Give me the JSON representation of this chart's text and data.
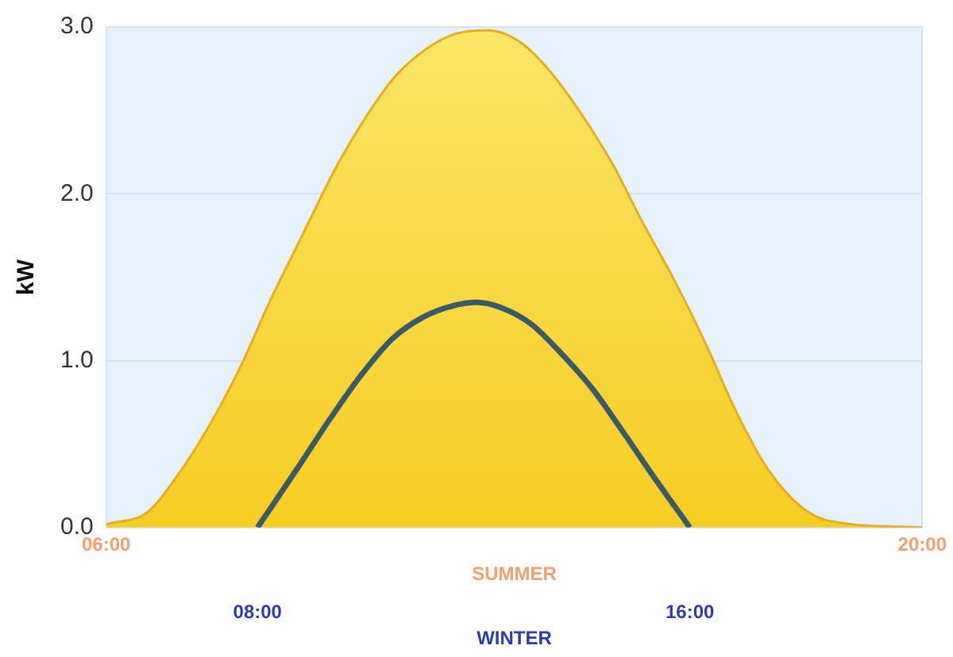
{
  "chart_data": {
    "type": "line",
    "ylabel": "kW",
    "xlabel": "SUMMER",
    "x2label": "WINTER",
    "xlim": [
      6,
      20
    ],
    "xticks": [
      {
        "value": 6,
        "label": "06:00"
      },
      {
        "value": 20,
        "label": "20:00"
      }
    ],
    "x2lim": [
      5.2,
      20.3
    ],
    "x2ticks": [
      {
        "value": 8,
        "label": "08:00"
      },
      {
        "value": 16,
        "label": "16:00"
      }
    ],
    "ylim": [
      0,
      3
    ],
    "yticks": [
      {
        "value": 0,
        "label": "0.0"
      },
      {
        "value": 1,
        "label": "1.0"
      },
      {
        "value": 2,
        "label": "2.0"
      },
      {
        "value": 3,
        "label": "3.0"
      }
    ],
    "grid": true,
    "legend": false,
    "marker": "none",
    "line_style": "solid",
    "series": [
      {
        "type": "area",
        "color": "#f5c918",
        "x": [
          6,
          6.7,
          7.2,
          7.75,
          8.3,
          8.8,
          9.35,
          9.9,
          10.4,
          10.95,
          11.5,
          12,
          12.55,
          13.1,
          13.6,
          14.15,
          14.7,
          15.2,
          15.75,
          16.3,
          16.8,
          17.35,
          17.9,
          18.4,
          20
        ],
        "values": [
          0.02,
          0.09,
          0.3,
          0.6,
          0.96,
          1.35,
          1.74,
          2.13,
          2.43,
          2.7,
          2.87,
          2.96,
          2.98,
          2.91,
          2.74,
          2.48,
          2.17,
          1.83,
          1.48,
          1.09,
          0.7,
          0.35,
          0.13,
          0.04,
          0
        ]
      },
      {
        "type": "line",
        "axis": "x2",
        "color": "#3a5a68",
        "x": [
          8,
          8.77,
          9.34,
          9.91,
          10.49,
          11.06,
          11.63,
          12.06,
          12.49,
          13.06,
          13.63,
          14.2,
          14.77,
          15.34,
          16
        ],
        "values": [
          0,
          0.37,
          0.65,
          0.91,
          1.13,
          1.26,
          1.33,
          1.35,
          1.32,
          1.22,
          1.04,
          0.83,
          0.57,
          0.3,
          0
        ]
      }
    ]
  }
}
